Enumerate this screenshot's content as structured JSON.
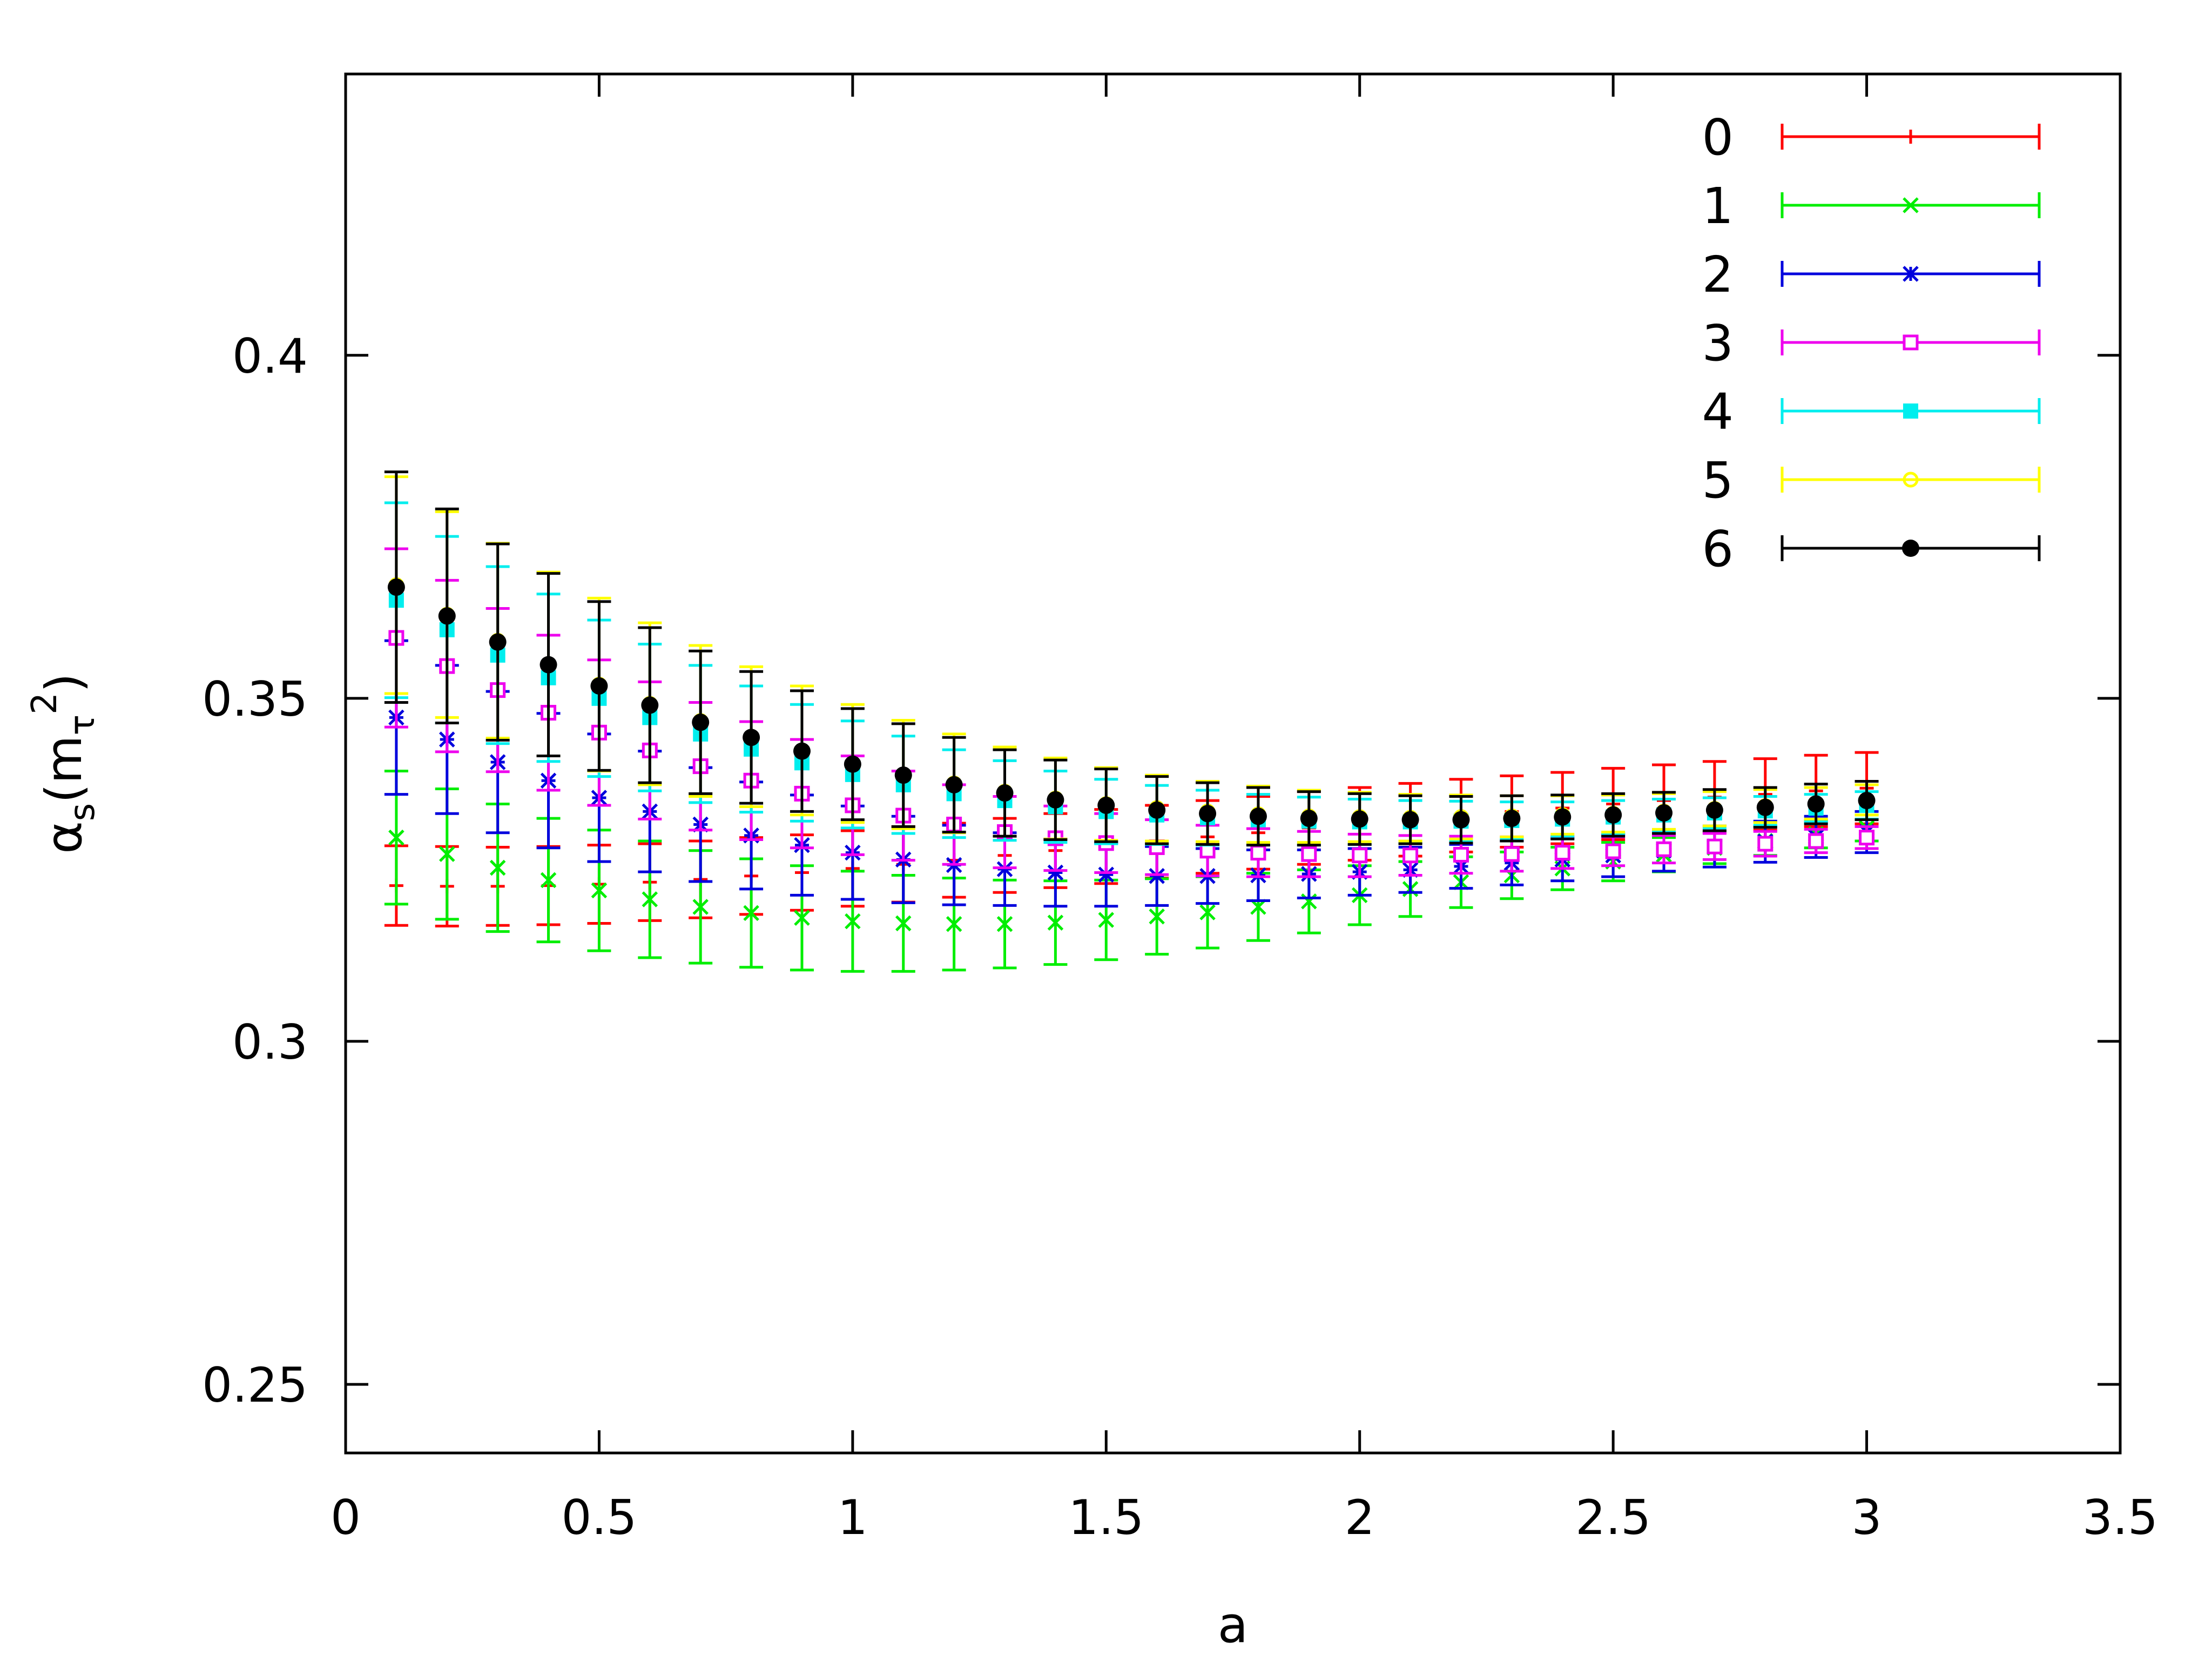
{
  "chart_data": {
    "type": "scatter",
    "xlabel": "a",
    "ylabel": "α_s(m_τ^2)",
    "xlim": [
      0,
      3.5
    ],
    "ylim": [
      0.24,
      0.441
    ],
    "xticks": [
      "0",
      "0.5",
      "1",
      "1.5",
      "2",
      "2.5",
      "3",
      "3.5"
    ],
    "yticks": [
      "0.25",
      "0.3",
      "0.35",
      "0.4"
    ],
    "legend_position": "top-right",
    "grid": false,
    "x": [
      0.1,
      0.2,
      0.3,
      0.4,
      0.5,
      0.6,
      0.7,
      0.8,
      0.9,
      1.0,
      1.1,
      1.2,
      1.3,
      1.4,
      1.5,
      1.6,
      1.7,
      1.8,
      1.9,
      2.0,
      2.1,
      2.2,
      2.3,
      2.4,
      2.5,
      2.6,
      2.7,
      2.8,
      2.9,
      3.0
    ],
    "series": [
      {
        "name": "0",
        "color": "#ff0000",
        "marker": "plus",
        "values": [
          0.3227,
          0.3226,
          0.3226,
          0.3227,
          0.3229,
          0.3232,
          0.3236,
          0.3241,
          0.3246,
          0.3252,
          0.3258,
          0.3264,
          0.3271,
          0.3278,
          0.3284,
          0.3291,
          0.3298,
          0.3304,
          0.3311,
          0.3317,
          0.3323,
          0.3329,
          0.3335,
          0.334,
          0.3346,
          0.3351,
          0.3356,
          0.336,
          0.3365,
          0.3369
        ],
        "errors": [
          0.0058,
          0.0058,
          0.0057,
          0.0057,
          0.0057,
          0.0056,
          0.0056,
          0.0056,
          0.0055,
          0.0055,
          0.0055,
          0.0054,
          0.0054,
          0.0054,
          0.0054,
          0.0053,
          0.0053,
          0.0053,
          0.0053,
          0.0053,
          0.0053,
          0.0053,
          0.0052,
          0.0052,
          0.0052,
          0.0052,
          0.0052,
          0.0052,
          0.0052,
          0.0052
        ]
      },
      {
        "name": "1",
        "color": "#00ee00",
        "marker": "cross",
        "values": [
          0.3297,
          0.3273,
          0.3253,
          0.3235,
          0.322,
          0.3207,
          0.3196,
          0.3187,
          0.318,
          0.3175,
          0.3172,
          0.3171,
          0.3171,
          0.3173,
          0.3177,
          0.3182,
          0.3188,
          0.3196,
          0.3204,
          0.3213,
          0.3222,
          0.3232,
          0.3242,
          0.3252,
          0.3262,
          0.3272,
          0.3282,
          0.3292,
          0.3302,
          0.3311
        ],
        "errors": [
          0.0097,
          0.0095,
          0.0093,
          0.009,
          0.0088,
          0.0085,
          0.0082,
          0.0079,
          0.0076,
          0.0073,
          0.007,
          0.0067,
          0.0064,
          0.0061,
          0.0058,
          0.0055,
          0.0052,
          0.0049,
          0.0046,
          0.0043,
          0.004,
          0.0037,
          0.0034,
          0.0031,
          0.0028,
          0.0025,
          0.0023,
          0.0021,
          0.002,
          0.0019
        ]
      },
      {
        "name": "2",
        "color": "#0000dd",
        "marker": "star",
        "values": [
          0.3472,
          0.344,
          0.3407,
          0.338,
          0.3355,
          0.3335,
          0.3316,
          0.33,
          0.3286,
          0.3275,
          0.3265,
          0.3257,
          0.3251,
          0.3246,
          0.3243,
          0.3241,
          0.3241,
          0.3242,
          0.3244,
          0.3247,
          0.325,
          0.3255,
          0.326,
          0.3265,
          0.3271,
          0.3278,
          0.3284,
          0.3291,
          0.3298,
          0.3305
        ],
        "errors": [
          0.0112,
          0.0108,
          0.0103,
          0.0098,
          0.0093,
          0.0088,
          0.0083,
          0.0078,
          0.0073,
          0.0068,
          0.0063,
          0.0058,
          0.0053,
          0.0049,
          0.0046,
          0.0043,
          0.004,
          0.0037,
          0.0035,
          0.0034,
          0.0033,
          0.0032,
          0.0032,
          0.0031,
          0.0031,
          0.003,
          0.003,
          0.003,
          0.003,
          0.003
        ]
      },
      {
        "name": "3",
        "color": "#ee00ee",
        "marker": "square",
        "values": [
          0.3588,
          0.3547,
          0.3512,
          0.3479,
          0.345,
          0.3424,
          0.3401,
          0.338,
          0.3361,
          0.3344,
          0.3329,
          0.3316,
          0.3305,
          0.3296,
          0.3289,
          0.3283,
          0.3278,
          0.3275,
          0.3273,
          0.3271,
          0.3271,
          0.3272,
          0.3273,
          0.3275,
          0.3277,
          0.328,
          0.3284,
          0.3288,
          0.3292,
          0.3297
        ],
        "errors": [
          0.013,
          0.0125,
          0.0119,
          0.0113,
          0.0106,
          0.01,
          0.0093,
          0.0086,
          0.0079,
          0.0072,
          0.0065,
          0.0058,
          0.0052,
          0.0047,
          0.0043,
          0.004,
          0.0037,
          0.0035,
          0.0033,
          0.0031,
          0.0029,
          0.0027,
          0.0025,
          0.0023,
          0.0021,
          0.002,
          0.0019,
          0.0018,
          0.0017,
          0.0016
        ]
      },
      {
        "name": "4",
        "color": "#00eeee",
        "marker": "filled-square",
        "values": [
          0.3643,
          0.36,
          0.3563,
          0.353,
          0.35,
          0.3472,
          0.3448,
          0.3426,
          0.3406,
          0.3389,
          0.3374,
          0.3361,
          0.3351,
          0.3342,
          0.3335,
          0.333,
          0.3326,
          0.3323,
          0.3321,
          0.332,
          0.332,
          0.3321,
          0.3322,
          0.3324,
          0.3327,
          0.333,
          0.3333,
          0.3336,
          0.334,
          0.3344
        ],
        "errors": [
          0.0142,
          0.0136,
          0.0129,
          0.0122,
          0.0114,
          0.0107,
          0.01,
          0.0092,
          0.0085,
          0.0078,
          0.0071,
          0.0064,
          0.0058,
          0.0052,
          0.0047,
          0.0043,
          0.004,
          0.0037,
          0.0035,
          0.0033,
          0.0031,
          0.0029,
          0.0027,
          0.0025,
          0.0024,
          0.0023,
          0.0022,
          0.0021,
          0.002,
          0.002
        ]
      },
      {
        "name": "5",
        "color": "#ffff00",
        "marker": "circle",
        "values": [
          0.3665,
          0.3622,
          0.3584,
          0.355,
          0.352,
          0.3492,
          0.3467,
          0.3444,
          0.3424,
          0.3405,
          0.3389,
          0.3376,
          0.3364,
          0.3354,
          0.3346,
          0.334,
          0.3335,
          0.3331,
          0.3328,
          0.3327,
          0.3326,
          0.3327,
          0.3328,
          0.333,
          0.3332,
          0.3335,
          0.3339,
          0.3343,
          0.3347,
          0.3352
        ],
        "errors": [
          0.0158,
          0.015,
          0.0142,
          0.0134,
          0.0126,
          0.0118,
          0.011,
          0.0102,
          0.0094,
          0.0086,
          0.0079,
          0.0072,
          0.0065,
          0.0059,
          0.0053,
          0.0048,
          0.0044,
          0.0041,
          0.0038,
          0.0036,
          0.0034,
          0.0032,
          0.003,
          0.0028,
          0.0027,
          0.0026,
          0.0025,
          0.0024,
          0.0023,
          0.0022
        ]
      },
      {
        "name": "6",
        "color": "#000000",
        "marker": "filled-circle",
        "values": [
          0.3662,
          0.362,
          0.3582,
          0.3549,
          0.3518,
          0.349,
          0.3465,
          0.3443,
          0.3423,
          0.3404,
          0.3388,
          0.3374,
          0.3362,
          0.3352,
          0.3344,
          0.3337,
          0.3332,
          0.3328,
          0.3325,
          0.3324,
          0.3323,
          0.3323,
          0.3325,
          0.3327,
          0.333,
          0.3333,
          0.3337,
          0.3341,
          0.3346,
          0.3351
        ],
        "errors": [
          0.0168,
          0.0156,
          0.0143,
          0.0133,
          0.0123,
          0.0113,
          0.0104,
          0.0096,
          0.0088,
          0.0081,
          0.0075,
          0.0069,
          0.0063,
          0.0058,
          0.0053,
          0.0049,
          0.0045,
          0.0042,
          0.0039,
          0.0037,
          0.0035,
          0.0034,
          0.0033,
          0.0032,
          0.0031,
          0.003,
          0.003,
          0.0029,
          0.0029,
          0.0028
        ]
      }
    ]
  }
}
